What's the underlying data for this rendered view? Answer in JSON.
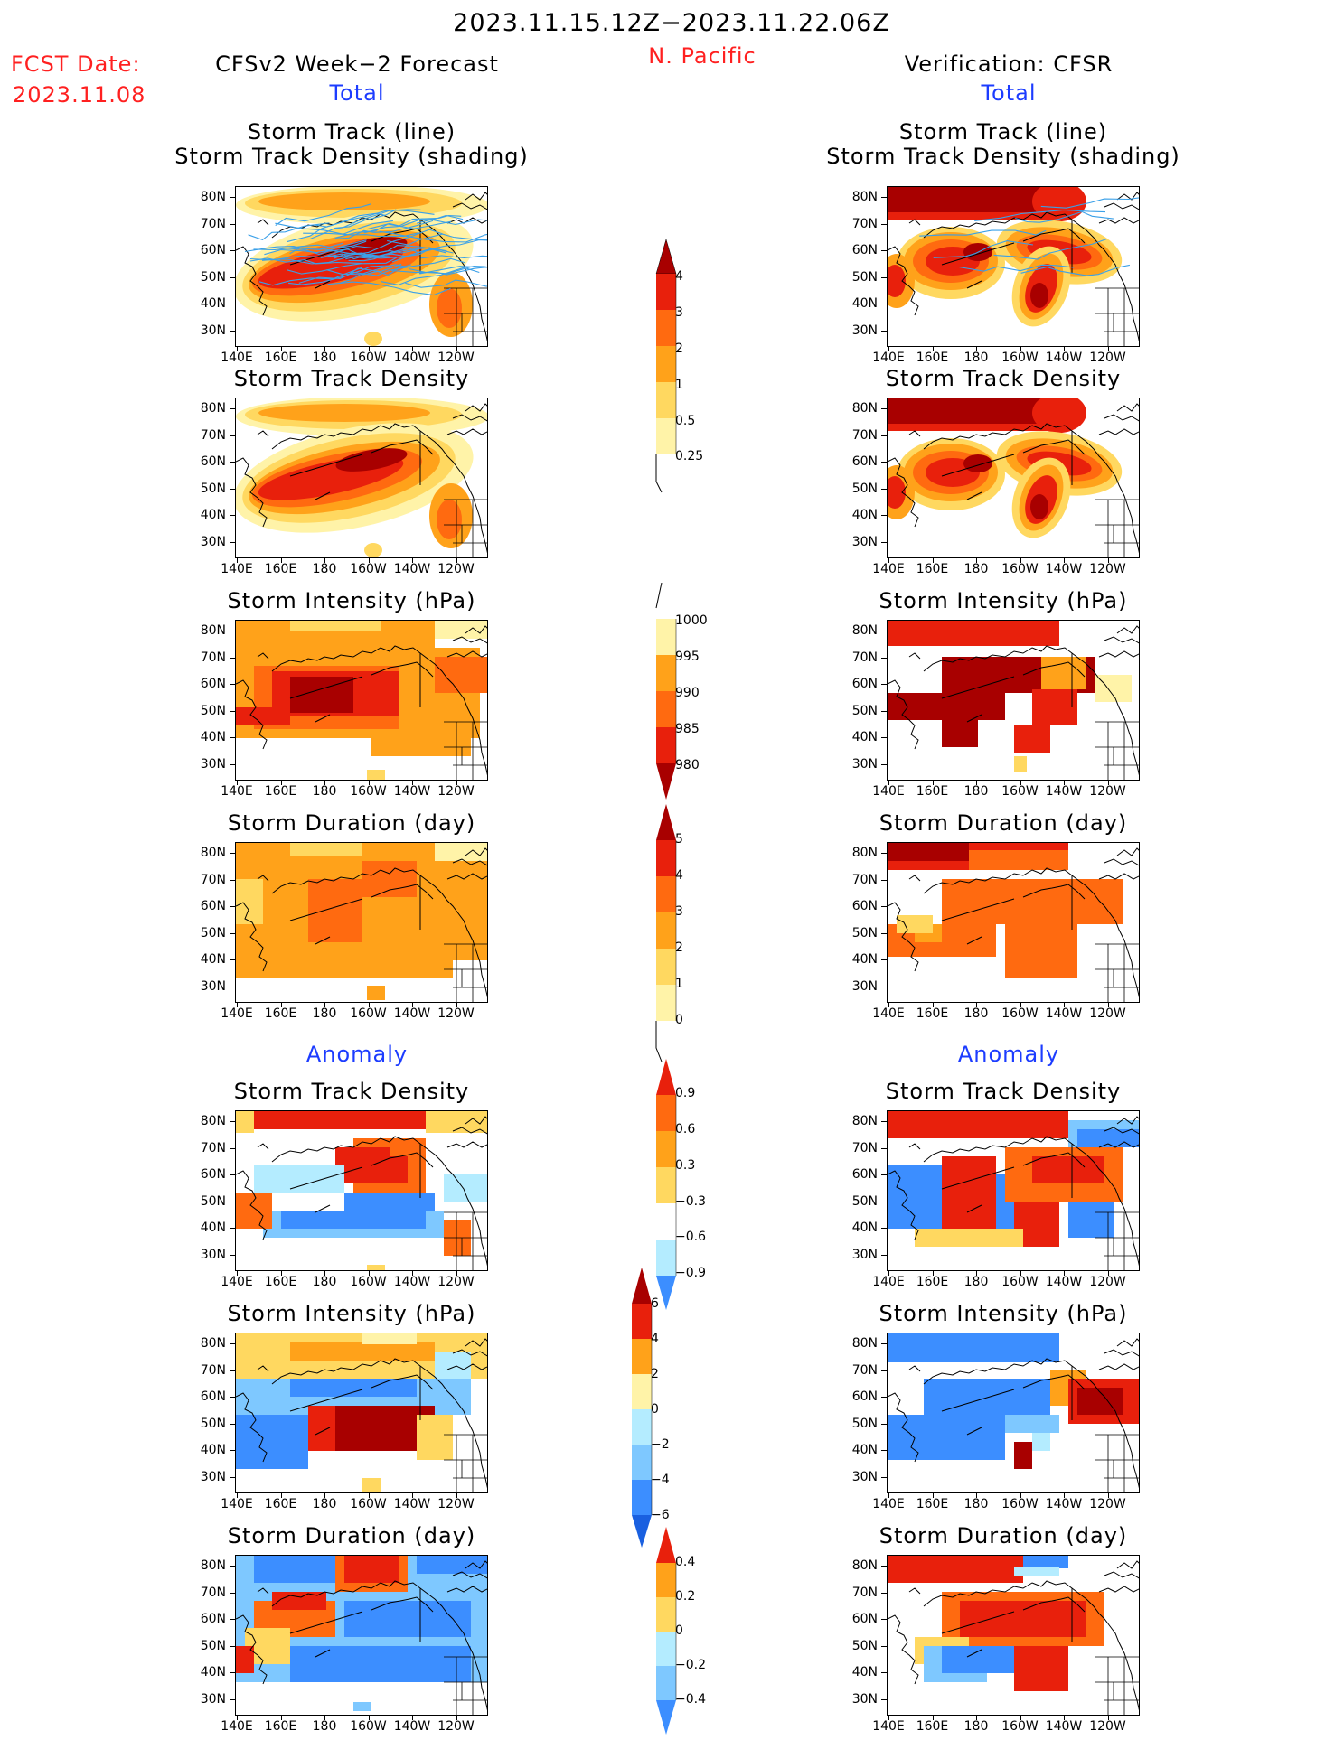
{
  "header": {
    "date_range": "2023.11.15.12Z−2023.11.22.06Z",
    "region": "N. Pacific",
    "fcst_label": "FCST Date:",
    "fcst_date": "2023.11.08",
    "left_title": "CFSv2 Week−2 Forecast",
    "right_title": "Verification: CFSR",
    "total_label": "Total",
    "anomaly_label": "Anomaly"
  },
  "panel_titles": {
    "track_line": "Storm Track (line)",
    "track_shading": "Storm Track Density (shading)",
    "density": "Storm Track Density",
    "intensity": "Storm Intensity (hPa)",
    "duration": "Storm Duration (day)"
  },
  "axes": {
    "lat_labels": [
      "80N",
      "70N",
      "60N",
      "50N",
      "40N",
      "30N"
    ],
    "lon_labels": [
      "140E",
      "160E",
      "180",
      "160W",
      "140W",
      "120W"
    ]
  },
  "colors": {
    "pale": "#fff3a8",
    "lightyellow": "#ffd860",
    "orange": "#ffa21a",
    "darkorange": "#ff6a10",
    "red": "#e8200c",
    "darkred": "#a80000",
    "lightblue": "#b4ecff",
    "midblue": "#7ec8ff",
    "blue": "#3c8eff",
    "darkblue": "#1a60e0",
    "track": "#3aa0e8",
    "coast": "#000000"
  },
  "colorbars": {
    "density_total": [
      "0.25",
      "0.5",
      "1",
      "2",
      "3",
      "4"
    ],
    "intensity_total": [
      "1000",
      "995",
      "990",
      "985",
      "980"
    ],
    "duration_total": [
      "0",
      "1",
      "2",
      "3",
      "4",
      "5"
    ],
    "density_anom": [
      "0.9",
      "0.6",
      "0.3",
      "−0.3",
      "−0.6",
      "−0.9"
    ],
    "intensity_anom": [
      "6",
      "4",
      "2",
      "0",
      "−2",
      "−4",
      "−6"
    ],
    "duration_anom": [
      "0.4",
      "0.2",
      "0",
      "−0.2",
      "−0.4"
    ]
  }
}
